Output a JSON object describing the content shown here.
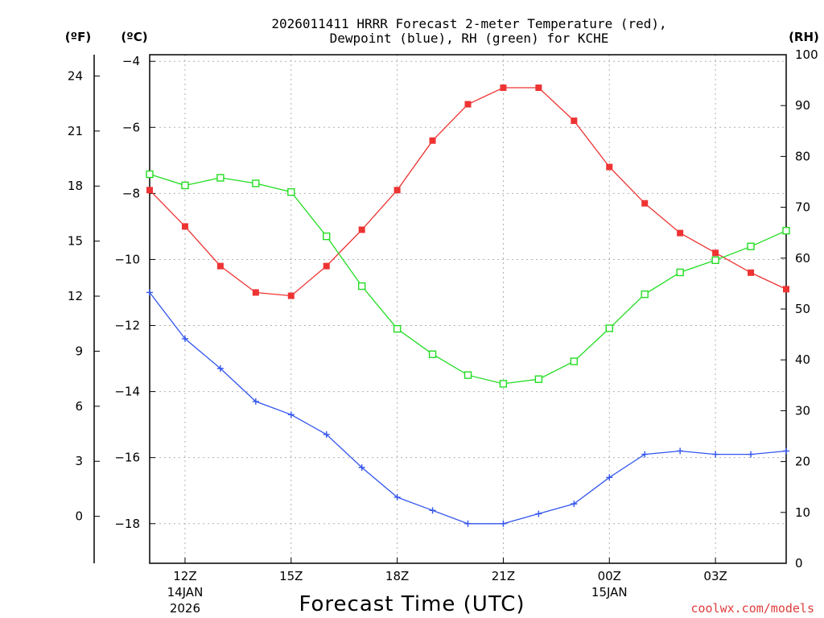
{
  "chart_data": {
    "type": "line",
    "title_line1": "2026011411 HRRR Forecast 2-meter Temperature (red),",
    "title_line2": "Dewpoint (blue), RH (green) for KCHE",
    "unit_f": "(ºF)",
    "unit_c": "(ºC)",
    "unit_rh": "(RH)",
    "xlabel": "Forecast Time (UTC)",
    "credit": "coolwx.com/models",
    "x_hours": [
      11,
      12,
      13,
      14,
      15,
      16,
      17,
      18,
      19,
      20,
      21,
      22,
      23,
      24,
      25,
      26,
      27,
      28,
      29
    ],
    "x_range": [
      11,
      29
    ],
    "celsius_range": [
      -19.2,
      -3.8
    ],
    "fahrenheit_ticks": [
      0,
      3,
      6,
      9,
      12,
      15,
      18,
      21,
      24
    ],
    "fahrenheit_tick_labels": [
      "0",
      "3",
      "6",
      "9",
      "12",
      "15",
      "18",
      "21",
      "24"
    ],
    "celsius_ticks": [
      -18,
      -16,
      -14,
      -12,
      -10,
      -8,
      -6,
      -4
    ],
    "celsius_tick_labels": [
      "−18",
      "−16",
      "−14",
      "−12",
      "−10",
      "−8",
      "−6",
      "−4"
    ],
    "rh_range": [
      0,
      100
    ],
    "rh_ticks": [
      0,
      10,
      20,
      30,
      40,
      50,
      60,
      70,
      80,
      90,
      100
    ],
    "rh_tick_labels": [
      "0",
      "10",
      "20",
      "30",
      "40",
      "50",
      "60",
      "70",
      "80",
      "90",
      "100"
    ],
    "x_ticks": [
      {
        "hour": 12,
        "label": "12Z",
        "sub1": "14JAN",
        "sub2": "2026"
      },
      {
        "hour": 15,
        "label": "15Z",
        "sub1": "",
        "sub2": ""
      },
      {
        "hour": 18,
        "label": "18Z",
        "sub1": "",
        "sub2": ""
      },
      {
        "hour": 21,
        "label": "21Z",
        "sub1": "",
        "sub2": ""
      },
      {
        "hour": 24,
        "label": "00Z",
        "sub1": "15JAN",
        "sub2": ""
      },
      {
        "hour": 27,
        "label": "03Z",
        "sub1": "",
        "sub2": ""
      }
    ],
    "series": [
      {
        "name": "Temperature",
        "axis": "celsius",
        "color": "#ee3333",
        "marker": "filled-square",
        "values": [
          -7.9,
          -9.0,
          -10.2,
          -11.0,
          -11.1,
          -10.2,
          -9.1,
          -7.9,
          -6.4,
          -5.3,
          -4.8,
          -4.8,
          -5.8,
          -7.2,
          -8.3,
          -9.2,
          -9.8,
          -10.4,
          -10.9
        ]
      },
      {
        "name": "Dewpoint",
        "axis": "celsius",
        "color": "#3355ee",
        "marker": "plus",
        "values": [
          -11.0,
          -12.4,
          -13.3,
          -14.3,
          -14.7,
          -15.3,
          -16.3,
          -17.2,
          -17.6,
          -18.0,
          -18.0,
          -17.7,
          -17.4,
          -16.6,
          -15.9,
          -15.8,
          -15.9,
          -15.9,
          -15.8
        ]
      },
      {
        "name": "RH",
        "axis": "rh",
        "color": "#22dd22",
        "marker": "open-square",
        "values": [
          76.5,
          74.3,
          75.8,
          74.7,
          73.0,
          64.3,
          54.5,
          46.1,
          41.1,
          37.0,
          35.3,
          36.2,
          39.7,
          46.2,
          52.9,
          57.2,
          59.6,
          62.3,
          65.4
        ]
      }
    ]
  }
}
